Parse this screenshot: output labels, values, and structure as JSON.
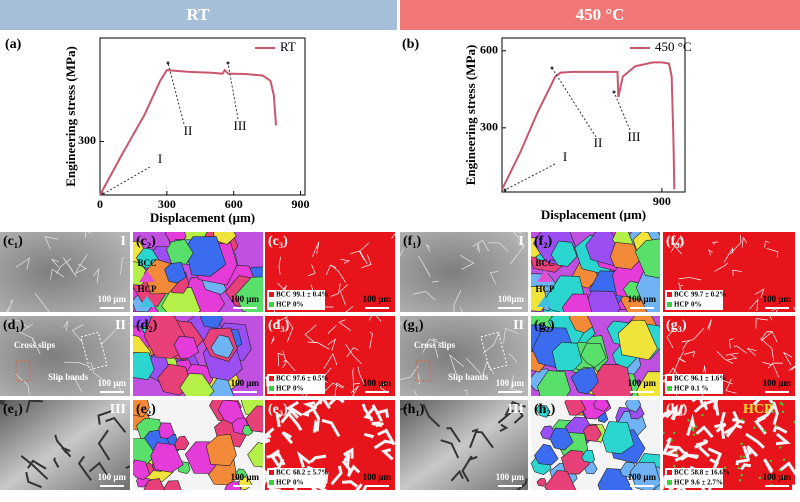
{
  "headers": [
    "RT",
    "450 °C"
  ],
  "chart_data": [
    {
      "type": "line",
      "panel": "(a)",
      "xlabel": "Displacement (μm)",
      "ylabel": "Engineering stress (MPa)",
      "xlim": [
        0,
        920
      ],
      "ylim": [
        0,
        880
      ],
      "xticks": [
        0,
        300,
        600,
        900
      ],
      "yticks": [
        300
      ],
      "series": [
        {
          "name": "RT",
          "color": "#c9566f",
          "x": [
            0,
            100,
            200,
            270,
            300,
            400,
            500,
            550,
            560,
            575,
            650,
            730,
            765,
            780,
            790
          ],
          "values": [
            0,
            230,
            450,
            640,
            700,
            690,
            685,
            680,
            700,
            680,
            678,
            670,
            640,
            560,
            390
          ]
        }
      ],
      "annotations": [
        "I",
        "II",
        "III"
      ]
    },
    {
      "type": "line",
      "panel": "(b)",
      "xlabel": "Displacement (μm)",
      "ylabel": "Engineering stress (MPa)",
      "xlim": [
        0,
        1030
      ],
      "ylim": [
        50,
        650
      ],
      "xticks": [
        900
      ],
      "yticks": [
        300,
        600
      ],
      "series": [
        {
          "name": "450 °C",
          "color": "#c9566f",
          "x": [
            0,
            100,
            200,
            300,
            330,
            400,
            650,
            655,
            680,
            750,
            850,
            900,
            940,
            955,
            965,
            970
          ],
          "values": [
            60,
            200,
            360,
            500,
            515,
            518,
            518,
            420,
            500,
            540,
            555,
            555,
            550,
            500,
            250,
            60
          ]
        }
      ],
      "annotations": [
        "I",
        "II",
        "III"
      ]
    }
  ],
  "panels": [
    {
      "label": "(c₁)",
      "kind": "sem",
      "tag": "I",
      "scale": "100 μm"
    },
    {
      "label": "(c₂)",
      "kind": "ipf",
      "key": [
        "BCC",
        "HCP"
      ],
      "scale": "100 μm"
    },
    {
      "label": "(c₃)",
      "kind": "phase",
      "legend": [
        [
          "BCC",
          "99.1 ± 0.4%"
        ],
        [
          "HCP",
          "0%"
        ]
      ],
      "scale": "100 μm"
    },
    {
      "label": "(f₁)",
      "kind": "sem",
      "tag": "I",
      "scale": "100μm"
    },
    {
      "label": "(f₂)",
      "kind": "ipf",
      "key": [
        "BCC",
        "HCP"
      ],
      "scale": "100 μm"
    },
    {
      "label": "(f₃)",
      "kind": "phase",
      "legend": [
        [
          "BCC",
          "99.7 ± 0.2%"
        ],
        [
          "HCP",
          "0%"
        ]
      ],
      "scale": "100 μm"
    },
    {
      "label": "(d₁)",
      "kind": "sem",
      "tag": "II",
      "notes": [
        "Cross slips",
        "Slip bands"
      ],
      "scale": "100 μm"
    },
    {
      "label": "(d₂)",
      "kind": "ipf",
      "scale": "100 μm"
    },
    {
      "label": "(d₃)",
      "kind": "phase",
      "legend": [
        [
          "BCC",
          "97.6 ± 0.5%"
        ],
        [
          "HCP",
          "0%"
        ]
      ],
      "scale": "100 μm"
    },
    {
      "label": "(g₁)",
      "kind": "sem",
      "tag": "II",
      "notes": [
        "Cross slips",
        "Slip bands"
      ],
      "scale": "100 μm"
    },
    {
      "label": "(g₂)",
      "kind": "ipf",
      "scale": "100 μm"
    },
    {
      "label": "(g₃)",
      "kind": "phase",
      "legend": [
        [
          "BCC",
          "96.1 ± 1.6%"
        ],
        [
          "HCP",
          "0.1 %"
        ]
      ],
      "scale": "100 μm"
    },
    {
      "label": "(e₁)",
      "kind": "sem",
      "tag": "III",
      "scale": "100 μm"
    },
    {
      "label": "(e₂)",
      "kind": "ipf",
      "scale": "100 μm"
    },
    {
      "label": "(e₃)",
      "kind": "phase",
      "legend": [
        [
          "BCC",
          "68.2 ± 5.7%"
        ],
        [
          "HCP",
          "0%"
        ]
      ],
      "scale": "100 μm"
    },
    {
      "label": "(h₁)",
      "kind": "sem",
      "tag": "III",
      "scale": "100 μm"
    },
    {
      "label": "(h₂)",
      "kind": "ipf",
      "scale": "100 μm"
    },
    {
      "label": "(h₃)",
      "kind": "phase",
      "legend": [
        [
          "BCC",
          "58.8 ± 16.6%"
        ],
        [
          "HCP",
          "9.6 ± 2.7%"
        ]
      ],
      "hcp": "HCP",
      "scale": "100 μm"
    }
  ]
}
